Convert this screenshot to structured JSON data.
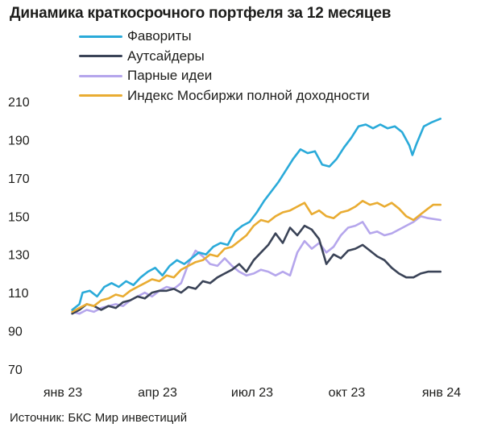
{
  "chart_data": {
    "type": "line",
    "title": "Динамика краткосрочного портфеля за 12 месяцев",
    "xlabel": "",
    "ylabel": "",
    "source": "Источник: БКС Мир инвестиций",
    "x_ticks": [
      "янв 23",
      "апр 23",
      "июл 23",
      "окт 23",
      "янв 24"
    ],
    "x_range": [
      "2023-01-01",
      "2024-01-01"
    ],
    "y_ticks": [
      70,
      90,
      110,
      130,
      150,
      170,
      190,
      210
    ],
    "ylim": [
      70,
      210
    ],
    "grid": false,
    "legend": "top-left",
    "series": [
      {
        "name": "Фавориты",
        "color": "#2aaad9",
        "points": [
          [
            "2023-01-10",
            101
          ],
          [
            "2023-01-17",
            104
          ],
          [
            "2023-01-20",
            110
          ],
          [
            "2023-01-27",
            111
          ],
          [
            "2023-02-03",
            108
          ],
          [
            "2023-02-10",
            113
          ],
          [
            "2023-02-17",
            115
          ],
          [
            "2023-02-24",
            113
          ],
          [
            "2023-03-03",
            116
          ],
          [
            "2023-03-10",
            114
          ],
          [
            "2023-03-17",
            118
          ],
          [
            "2023-03-24",
            121
          ],
          [
            "2023-03-31",
            123
          ],
          [
            "2023-04-07",
            119
          ],
          [
            "2023-04-14",
            124
          ],
          [
            "2023-04-21",
            127
          ],
          [
            "2023-04-28",
            125
          ],
          [
            "2023-05-05",
            128
          ],
          [
            "2023-05-12",
            131
          ],
          [
            "2023-05-19",
            130
          ],
          [
            "2023-05-26",
            134
          ],
          [
            "2023-06-02",
            136
          ],
          [
            "2023-06-09",
            135
          ],
          [
            "2023-06-16",
            142
          ],
          [
            "2023-06-23",
            145
          ],
          [
            "2023-06-30",
            147
          ],
          [
            "2023-07-07",
            152
          ],
          [
            "2023-07-14",
            158
          ],
          [
            "2023-07-21",
            163
          ],
          [
            "2023-07-28",
            168
          ],
          [
            "2023-08-04",
            174
          ],
          [
            "2023-08-11",
            180
          ],
          [
            "2023-08-18",
            185
          ],
          [
            "2023-08-25",
            183
          ],
          [
            "2023-09-01",
            184
          ],
          [
            "2023-09-08",
            177
          ],
          [
            "2023-09-15",
            176
          ],
          [
            "2023-09-22",
            180
          ],
          [
            "2023-09-29",
            186
          ],
          [
            "2023-10-06",
            191
          ],
          [
            "2023-10-13",
            197
          ],
          [
            "2023-10-20",
            198
          ],
          [
            "2023-10-27",
            196
          ],
          [
            "2023-11-03",
            198
          ],
          [
            "2023-11-10",
            196
          ],
          [
            "2023-11-17",
            197
          ],
          [
            "2023-11-24",
            194
          ],
          [
            "2023-12-01",
            187
          ],
          [
            "2023-12-04",
            182
          ],
          [
            "2023-12-08",
            188
          ],
          [
            "2023-12-15",
            197
          ],
          [
            "2023-12-22",
            199
          ],
          [
            "2023-12-31",
            201
          ]
        ]
      },
      {
        "name": "Аутсайдеры",
        "color": "#3a4357",
        "points": [
          [
            "2023-01-10",
            99
          ],
          [
            "2023-01-17",
            101
          ],
          [
            "2023-01-24",
            104
          ],
          [
            "2023-01-31",
            103
          ],
          [
            "2023-02-07",
            101
          ],
          [
            "2023-02-14",
            103
          ],
          [
            "2023-02-21",
            102
          ],
          [
            "2023-02-28",
            105
          ],
          [
            "2023-03-07",
            106
          ],
          [
            "2023-03-14",
            108
          ],
          [
            "2023-03-21",
            107
          ],
          [
            "2023-03-28",
            110
          ],
          [
            "2023-04-04",
            111
          ],
          [
            "2023-04-11",
            111
          ],
          [
            "2023-04-18",
            112
          ],
          [
            "2023-04-25",
            110
          ],
          [
            "2023-05-02",
            113
          ],
          [
            "2023-05-09",
            112
          ],
          [
            "2023-05-16",
            116
          ],
          [
            "2023-05-23",
            115
          ],
          [
            "2023-05-30",
            118
          ],
          [
            "2023-06-06",
            120
          ],
          [
            "2023-06-13",
            122
          ],
          [
            "2023-06-20",
            125
          ],
          [
            "2023-06-27",
            121
          ],
          [
            "2023-07-04",
            127
          ],
          [
            "2023-07-11",
            131
          ],
          [
            "2023-07-18",
            135
          ],
          [
            "2023-07-25",
            141
          ],
          [
            "2023-08-01",
            136
          ],
          [
            "2023-08-08",
            144
          ],
          [
            "2023-08-15",
            140
          ],
          [
            "2023-08-22",
            145
          ],
          [
            "2023-08-29",
            143
          ],
          [
            "2023-09-05",
            138
          ],
          [
            "2023-09-12",
            125
          ],
          [
            "2023-09-19",
            130
          ],
          [
            "2023-09-26",
            128
          ],
          [
            "2023-10-03",
            132
          ],
          [
            "2023-10-10",
            133
          ],
          [
            "2023-10-17",
            135
          ],
          [
            "2023-10-24",
            132
          ],
          [
            "2023-10-31",
            129
          ],
          [
            "2023-11-07",
            127
          ],
          [
            "2023-11-14",
            123
          ],
          [
            "2023-11-21",
            120
          ],
          [
            "2023-11-28",
            118
          ],
          [
            "2023-12-05",
            118
          ],
          [
            "2023-12-12",
            120
          ],
          [
            "2023-12-19",
            121
          ],
          [
            "2023-12-31",
            121
          ]
        ]
      },
      {
        "name": "Парные идеи",
        "color": "#b5a6ec",
        "points": [
          [
            "2023-01-10",
            100
          ],
          [
            "2023-01-17",
            99
          ],
          [
            "2023-01-24",
            101
          ],
          [
            "2023-01-31",
            100
          ],
          [
            "2023-02-07",
            102
          ],
          [
            "2023-02-14",
            103
          ],
          [
            "2023-02-21",
            104
          ],
          [
            "2023-02-28",
            103
          ],
          [
            "2023-03-07",
            106
          ],
          [
            "2023-03-14",
            108
          ],
          [
            "2023-03-21",
            110
          ],
          [
            "2023-03-28",
            108
          ],
          [
            "2023-04-04",
            111
          ],
          [
            "2023-04-11",
            113
          ],
          [
            "2023-04-18",
            112
          ],
          [
            "2023-04-25",
            115
          ],
          [
            "2023-05-02",
            125
          ],
          [
            "2023-05-09",
            132
          ],
          [
            "2023-05-16",
            129
          ],
          [
            "2023-05-23",
            125
          ],
          [
            "2023-05-30",
            124
          ],
          [
            "2023-06-06",
            128
          ],
          [
            "2023-06-13",
            124
          ],
          [
            "2023-06-20",
            121
          ],
          [
            "2023-06-27",
            119
          ],
          [
            "2023-07-04",
            120
          ],
          [
            "2023-07-11",
            122
          ],
          [
            "2023-07-18",
            121
          ],
          [
            "2023-07-25",
            119
          ],
          [
            "2023-08-01",
            121
          ],
          [
            "2023-08-08",
            119
          ],
          [
            "2023-08-15",
            131
          ],
          [
            "2023-08-22",
            137
          ],
          [
            "2023-08-29",
            133
          ],
          [
            "2023-09-05",
            136
          ],
          [
            "2023-09-12",
            131
          ],
          [
            "2023-09-19",
            134
          ],
          [
            "2023-09-26",
            140
          ],
          [
            "2023-10-03",
            144
          ],
          [
            "2023-10-10",
            145
          ],
          [
            "2023-10-17",
            147
          ],
          [
            "2023-10-24",
            141
          ],
          [
            "2023-10-31",
            142
          ],
          [
            "2023-11-07",
            140
          ],
          [
            "2023-11-14",
            141
          ],
          [
            "2023-11-21",
            143
          ],
          [
            "2023-11-28",
            145
          ],
          [
            "2023-12-05",
            147
          ],
          [
            "2023-12-12",
            150
          ],
          [
            "2023-12-19",
            149
          ],
          [
            "2023-12-31",
            148
          ]
        ]
      },
      {
        "name": "Индекс Мосбиржи полной доходности",
        "color": "#e9ac32",
        "points": [
          [
            "2023-01-10",
            100
          ],
          [
            "2023-01-17",
            102
          ],
          [
            "2023-01-24",
            104
          ],
          [
            "2023-01-31",
            103
          ],
          [
            "2023-02-07",
            106
          ],
          [
            "2023-02-14",
            107
          ],
          [
            "2023-02-21",
            109
          ],
          [
            "2023-02-28",
            108
          ],
          [
            "2023-03-07",
            111
          ],
          [
            "2023-03-14",
            113
          ],
          [
            "2023-03-21",
            115
          ],
          [
            "2023-03-28",
            117
          ],
          [
            "2023-04-04",
            116
          ],
          [
            "2023-04-11",
            119
          ],
          [
            "2023-04-18",
            118
          ],
          [
            "2023-04-25",
            122
          ],
          [
            "2023-05-02",
            124
          ],
          [
            "2023-05-09",
            126
          ],
          [
            "2023-05-16",
            127
          ],
          [
            "2023-05-23",
            130
          ],
          [
            "2023-05-30",
            129
          ],
          [
            "2023-06-06",
            133
          ],
          [
            "2023-06-13",
            134
          ],
          [
            "2023-06-20",
            137
          ],
          [
            "2023-06-27",
            140
          ],
          [
            "2023-07-04",
            145
          ],
          [
            "2023-07-11",
            148
          ],
          [
            "2023-07-18",
            147
          ],
          [
            "2023-07-25",
            150
          ],
          [
            "2023-08-01",
            152
          ],
          [
            "2023-08-08",
            153
          ],
          [
            "2023-08-15",
            155
          ],
          [
            "2023-08-22",
            157
          ],
          [
            "2023-08-29",
            151
          ],
          [
            "2023-09-05",
            153
          ],
          [
            "2023-09-12",
            150
          ],
          [
            "2023-09-19",
            149
          ],
          [
            "2023-09-26",
            152
          ],
          [
            "2023-10-03",
            153
          ],
          [
            "2023-10-10",
            155
          ],
          [
            "2023-10-17",
            158
          ],
          [
            "2023-10-24",
            156
          ],
          [
            "2023-10-31",
            157
          ],
          [
            "2023-11-07",
            155
          ],
          [
            "2023-11-14",
            157
          ],
          [
            "2023-11-21",
            154
          ],
          [
            "2023-11-28",
            150
          ],
          [
            "2023-12-05",
            148
          ],
          [
            "2023-12-12",
            151
          ],
          [
            "2023-12-19",
            154
          ],
          [
            "2023-12-24",
            156
          ],
          [
            "2023-12-31",
            156
          ]
        ]
      }
    ]
  }
}
